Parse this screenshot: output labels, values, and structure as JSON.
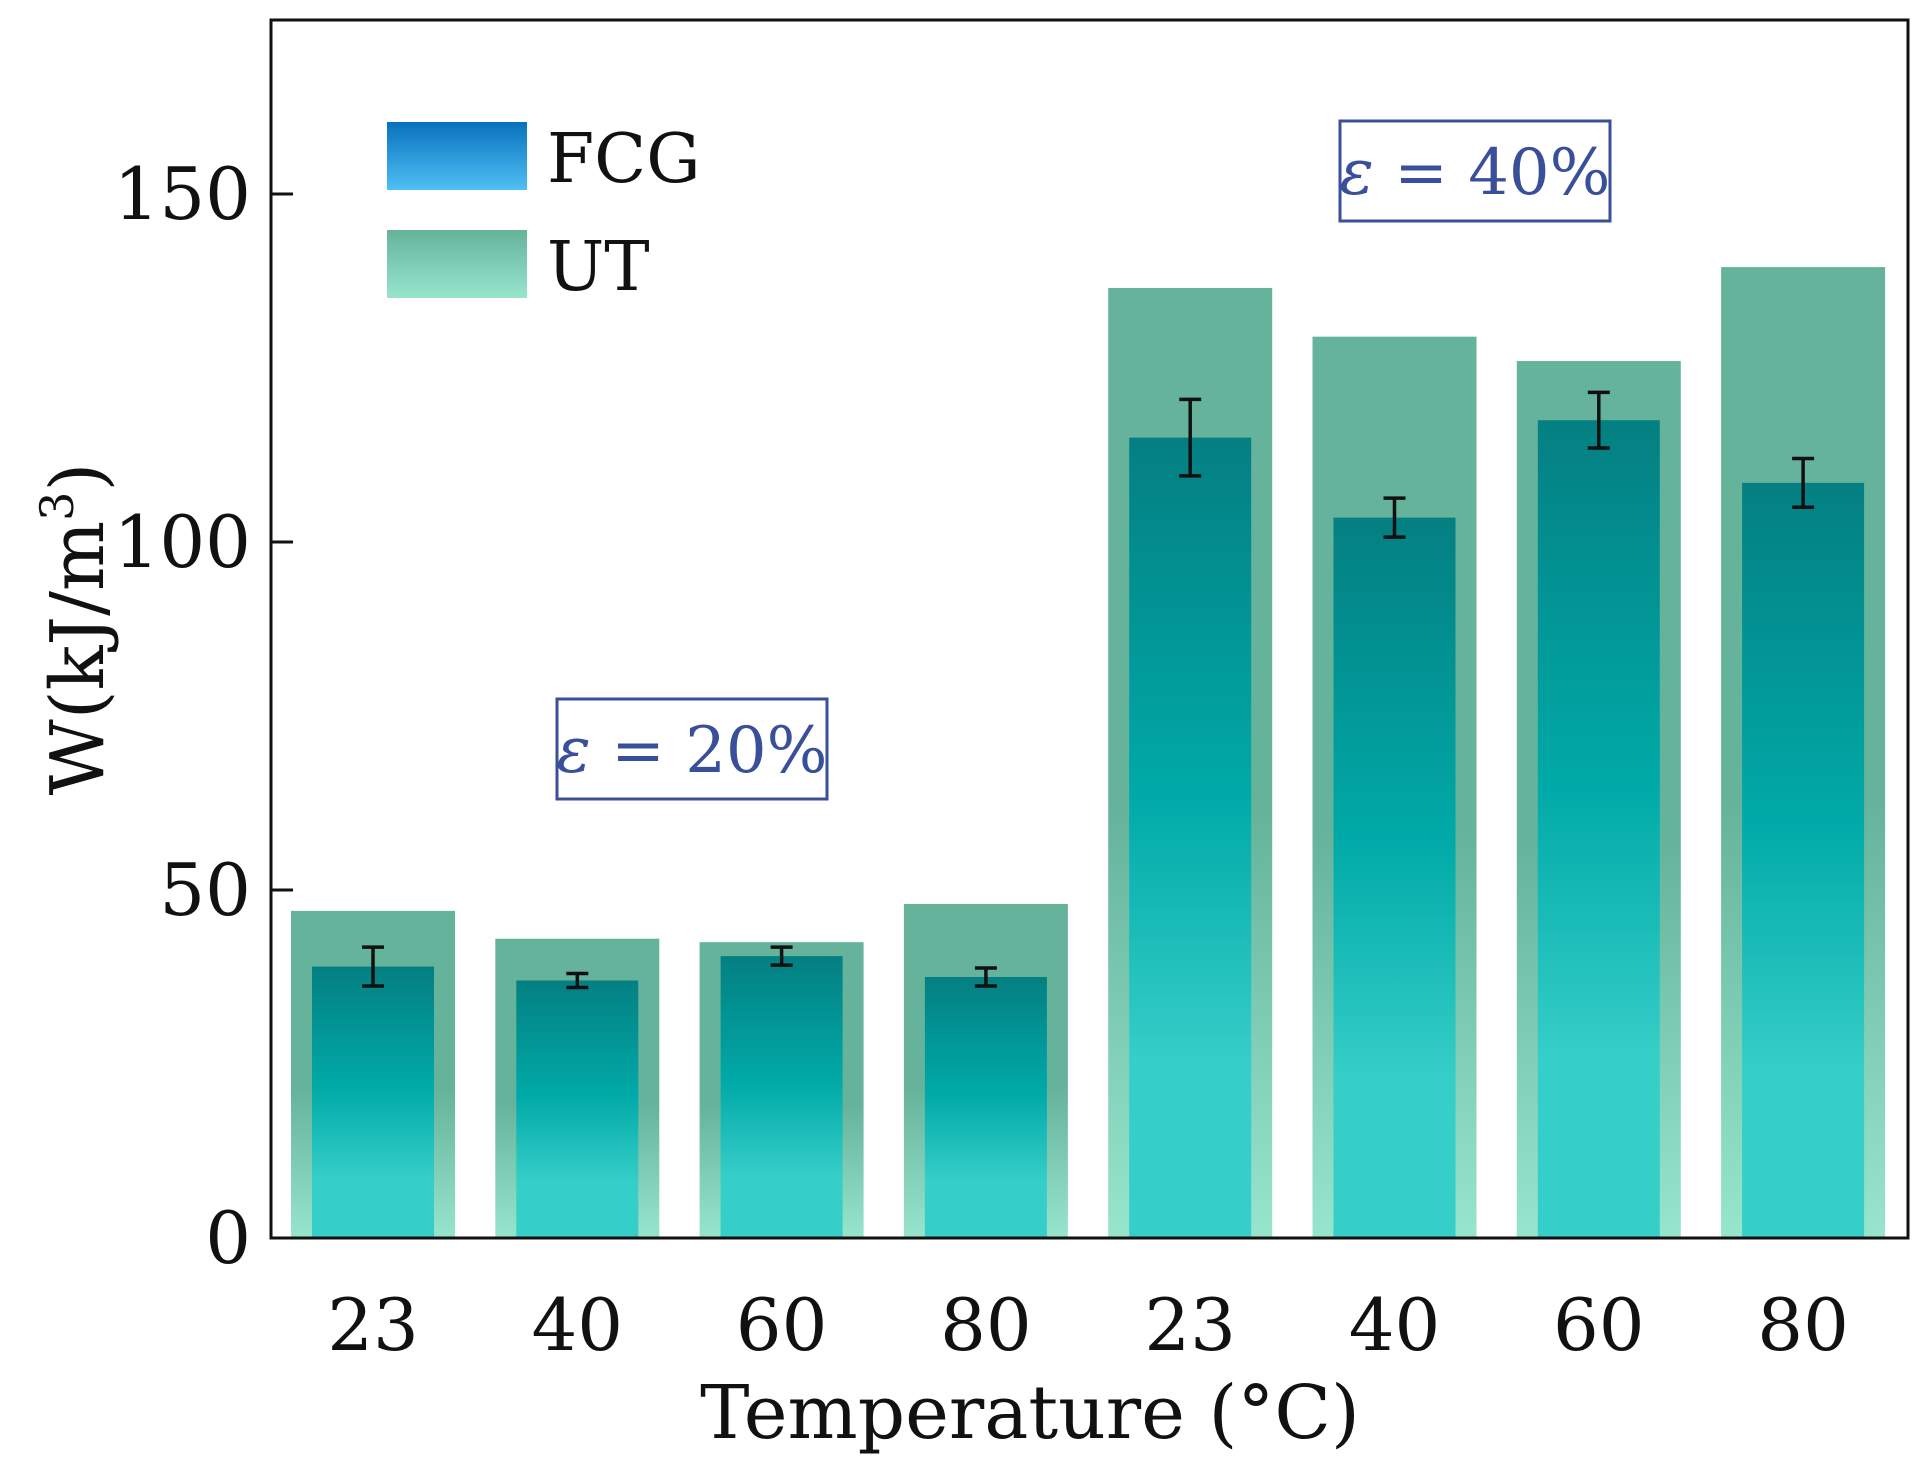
{
  "chart_data": {
    "type": "bar",
    "title": "",
    "xlabel": "Temperature (°C)",
    "ylabel": "W(kJ/m",
    "ylabel_sup": "3",
    "ylabel_close": ")",
    "ylim": [
      0,
      175
    ],
    "yticks": [
      0,
      50,
      100,
      150
    ],
    "categories": [
      "23",
      "40",
      "60",
      "80",
      "23",
      "40",
      "60",
      "80"
    ],
    "series": [
      {
        "name": "FCG",
        "values": [
          39,
          37,
          40.5,
          37.5,
          115,
          103.5,
          117.5,
          108.5
        ],
        "errors": [
          2.8,
          1.0,
          1.3,
          1.3,
          5.5,
          2.8,
          4.0,
          3.5
        ]
      },
      {
        "name": "UT",
        "values": [
          47,
          43,
          42.5,
          48,
          136.5,
          129.5,
          126,
          139.5
        ]
      }
    ],
    "annotations": [
      {
        "symbol": "ε",
        "text": " = 20%"
      },
      {
        "symbol": "ε",
        "text": " = 40%"
      }
    ],
    "legend_position": "top-left",
    "grid": false
  },
  "colors": {
    "fcg_top": "#047f82",
    "fcg_mid": "#00aaa8",
    "fcg_bottom": "#36cec8",
    "ut_top": "#66b39c",
    "ut_bottom": "#98e5cd",
    "legend_fcg_top": "#0871bd",
    "legend_fcg_bottom": "#4fc0f4",
    "annotation": "#3a4f9a",
    "axis": "#111111",
    "error_bar": "#111111"
  }
}
